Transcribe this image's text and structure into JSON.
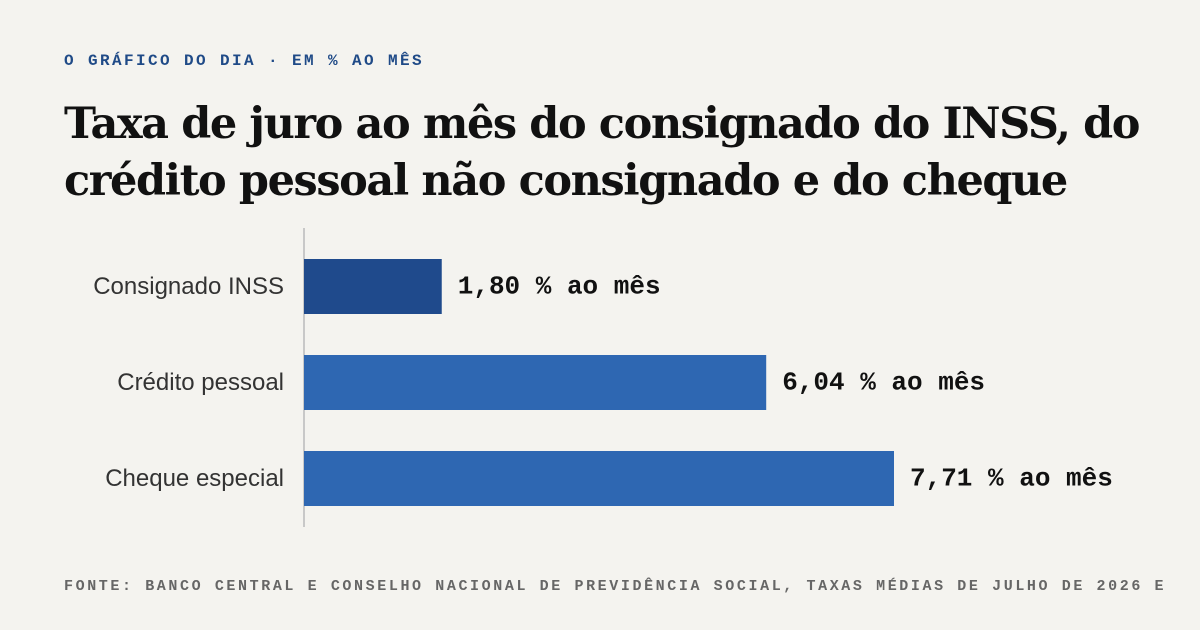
{
  "header": {
    "kicker": "O GRÁFICO DO DIA · EM % AO MÊS",
    "title": "Taxa de juro ao mês do consignado do INSS, do crédito pessoal não consignado e do cheque"
  },
  "footer": {
    "source": "FONTE: BANCO CENTRAL E CONSELHO NACIONAL DE PREVIDÊNCIA SOCIAL, TAXAS MÉDIAS DE JULHO DE 2026 E"
  },
  "chart_data": {
    "type": "bar",
    "orientation": "horizontal",
    "title": "Taxa de juro ao mês do consignado do INSS, do crédito pessoal não consignado e do cheque",
    "categories": [
      "Consignado INSS",
      "Crédito pessoal",
      "Cheque especial"
    ],
    "values": [
      1.8,
      6.04,
      7.71
    ],
    "value_labels": [
      "1,80 % ao mês",
      "6,04 % ao mês",
      "7,71 % ao mês"
    ],
    "unit": "% ao mês",
    "xlim": [
      0,
      7.71
    ],
    "grid": false,
    "legend": "none",
    "colors": [
      "#1f4a8c",
      "#2e67b2",
      "#2e67b2"
    ],
    "axis_color": "#c8c8c8"
  }
}
